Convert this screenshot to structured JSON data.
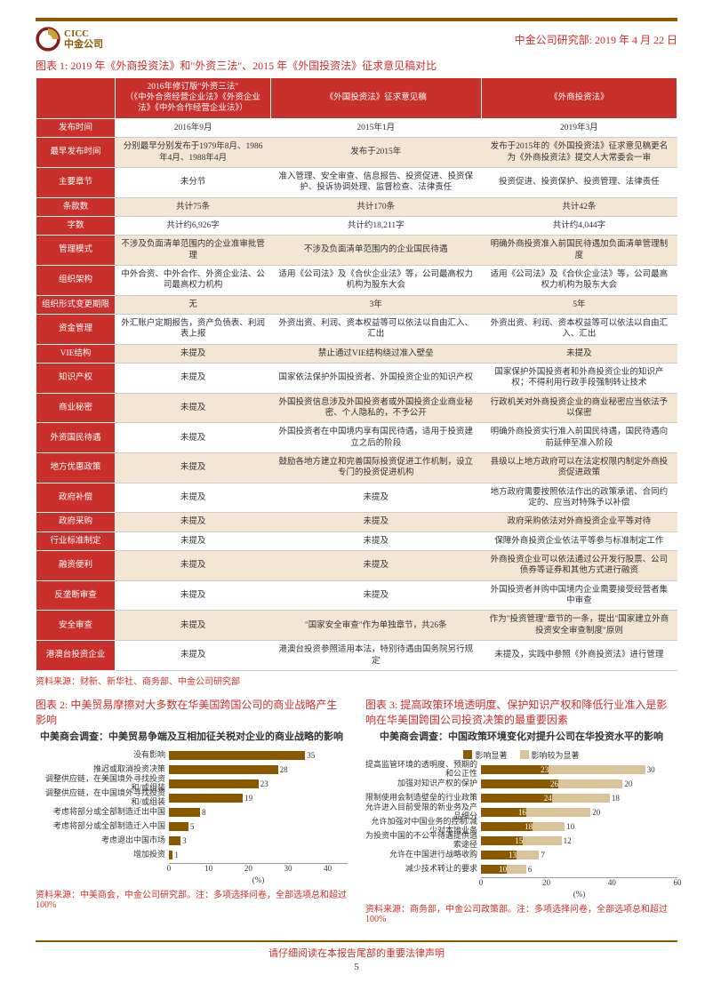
{
  "header": {
    "company_en": "CICC",
    "company_cn": "中金公司",
    "dept_date": "中金公司研究部: 2019 年 4 月 22 日"
  },
  "table1": {
    "caption": "图表 1: 2019 年《外商投资法》和\"外资三法\"、2015 年《外国投资法》征求意见稿对比",
    "headers": [
      "",
      "2016年修订版\"外资三法\"\n（《中外合资经营企业法》《外资企业法》《中外合作经营企业法》）",
      "《外国投资法》征求意见稿",
      "《外商投资法》"
    ],
    "rows": [
      {
        "h": "发布时间",
        "c": [
          "2016年9月",
          "2015年1月",
          "2019年3月"
        ]
      },
      {
        "h": "最早发布时间",
        "c": [
          "分别最早分别发布于1979年8月、1986年4月、1988年4月",
          "发布于2015年",
          "发布于2015年的《外国投资法》征求意见稿更名为《外商投资法》提交人大常委会一审"
        ]
      },
      {
        "h": "主要章节",
        "c": [
          "未分节",
          "准入管理、安全审查、信息报告、投资促进、投资保护、投诉协调处理、监督检查、法律责任",
          "投资促进、投资保护、投资管理、法律责任"
        ]
      },
      {
        "h": "条款数",
        "c": [
          "共计75条",
          "共计170条",
          "共计42条"
        ]
      },
      {
        "h": "字数",
        "c": [
          "共计约6,926字",
          "共计约18,211字",
          "共计约4,044字"
        ]
      },
      {
        "h": "管理模式",
        "c": [
          "不涉及负面清单范围内的企业准审批管理",
          "不涉及负面清单范围内的企业国民待遇",
          "明确外商投资准入前国民待遇加负面清单管理制度"
        ]
      },
      {
        "h": "组织架构",
        "c": [
          "中外合资、中外合作、外资企业法、公司最高权力机构",
          "适用《公司法》及《合伙企业法》等，公司最高权力机构为股东大会",
          "适用《公司法》及《合伙企业法》等，公司最高权力机构为股东大会"
        ]
      },
      {
        "h": "组织形式变更期限",
        "c": [
          "无",
          "3年",
          "5年"
        ]
      },
      {
        "h": "资金管理",
        "c": [
          "外汇账户定期报告，资产负债表、利润表上报",
          "外资出资、利润、资本权益等可以依法以自由汇入、汇出",
          "外资出资、利润、资本权益等可以依法以自由汇入、汇出"
        ]
      },
      {
        "h": "VIE结构",
        "c": [
          "未提及",
          "禁止通过VIE结构绕过准入壁垒",
          "未提及"
        ]
      },
      {
        "h": "知识产权",
        "c": [
          "未提及",
          "国家依法保护外国投资者、外国投资企业的知识产权",
          "国家保护外国投资者和外商投资企业的知识产权；不得利用行政手段强制转让技术"
        ]
      },
      {
        "h": "商业秘密",
        "c": [
          "未提及",
          "外国投资信息涉及外国投资者或外国投资企业商业秘密、个人隐私的，不予公开",
          "行政机关对外商投资企业的商业秘密应当依法予以保密"
        ]
      },
      {
        "h": "外资国民待遇",
        "c": [
          "未提及",
          "外国投资者在中国境内享有国民待遇，适用于投资建立之后的阶段",
          "明确外商投资实行准入前国民待遇，国民待遇向前延伸至准入阶段"
        ]
      },
      {
        "h": "地方优惠政策",
        "c": [
          "未提及",
          "鼓励各地方建立和完善国际投资促进工作机制，设立专门的投资促进机构",
          "县级以上地方政府可以在法定权限内制定外商投资促进政策"
        ]
      },
      {
        "h": "政府补偿",
        "c": [
          "未提及",
          "未提及",
          "地方政府需要按照依法作出的政策承诺、合同约定的、应当对特殊予以补偿"
        ]
      },
      {
        "h": "政府采购",
        "c": [
          "未提及",
          "未提及",
          "政府采购依法对外商投资企业平等对待"
        ]
      },
      {
        "h": "行业标准制定",
        "c": [
          "未提及",
          "未提及",
          "保障外商投资企业依法平等参与标准制定工作"
        ]
      },
      {
        "h": "融资便利",
        "c": [
          "未提及",
          "未提及",
          "外商投资企业可以依法通过公开发行股票、公司债券等证券和其他方式进行融资"
        ]
      },
      {
        "h": "反垄断审查",
        "c": [
          "未提及",
          "未提及",
          "外国投资者并购中国境内企业需要接受经营者集中审查"
        ]
      },
      {
        "h": "安全审查",
        "c": [
          "未提及",
          "\"国家安全审查\"作为单独章节，共26条",
          "作为\"投资管理\"章节的一条，提出\"国家建立外商投资安全审查制度\"原则"
        ]
      },
      {
        "h": "港澳台投资企业",
        "c": [
          "未提及",
          "港澳台投资参照适用本法，特别待遇由国务院另行规定",
          "未提及，实践中参照《外商投资法》进行管理"
        ]
      }
    ],
    "source": "资料来源：财新、新华社、商务部、中金公司研究部"
  },
  "chart2": {
    "caption": "图表 2: 中美贸易摩擦对大多数在华美国跨国公司的商业战略产生影响",
    "title": "中美商会调查：中美贸易争端及互相加征关税对企业的商业战略的影响",
    "type": "bar",
    "xmax": 45,
    "xticks": [
      0,
      10,
      20,
      30,
      40
    ],
    "xlabel": "(%)",
    "label_width": 150,
    "bar_color": "#8b5a00",
    "bars": [
      {
        "label": "没有影响",
        "value": 35
      },
      {
        "label": "推迟或取消投资决策",
        "value": 28
      },
      {
        "label": "调整供应链，在美国境外寻找投资和/或组装",
        "value": 23
      },
      {
        "label": "调整供应链，在中国境外寻找投资和/或组装",
        "value": 19
      },
      {
        "label": "考虑将部分或全部制造迁出中国",
        "value": 8
      },
      {
        "label": "考虑将部分或全部制造迁入中国",
        "value": 5
      },
      {
        "label": "考虑退出中国市场",
        "value": 3
      },
      {
        "label": "增加投资",
        "value": 1
      }
    ],
    "source": "资料来源：中美商会，中金公司研究部。注：多项选择问卷，全部选项总和超过 100%"
  },
  "chart3": {
    "caption": "图表 3: 提高政策环境透明度、保护知识产权和降低行业准入是影响在华美国跨国公司投资决策的最重要因素",
    "title": "中美商会调查：中国政策环境变化对提升公司在华投资水平的影响",
    "type": "stacked-bar",
    "xmax": 60,
    "xticks": [
      0,
      20,
      40,
      60
    ],
    "xlabel": "(%)",
    "label_width": 130,
    "legend": [
      {
        "name": "影响显著",
        "color": "#8b5a00"
      },
      {
        "name": "影响较为显著",
        "color": "#d9c49a"
      }
    ],
    "bars": [
      {
        "label": "提高监管环境的透明度、预期的和公正性",
        "v1": 23,
        "v2": 30
      },
      {
        "label": "加强对知识产权的保护",
        "v1": 26,
        "v2": 20
      },
      {
        "label": "限制使用会制造壁垒的行业政策",
        "v1": 24,
        "v2": 18
      },
      {
        "label": "允许进入目前受限的新业务及产品细分",
        "v1": 16,
        "v2": 20
      },
      {
        "label": "允许加强对中国业务的控制/减少对本地业务",
        "v1": 18,
        "v2": 10
      },
      {
        "label": "为投资中国的不公平待遇提供追索途径",
        "v1": 15,
        "v2": 12
      },
      {
        "label": "允许在中国进行战略收购",
        "v1": 13,
        "v2": 7
      },
      {
        "label": "减少技术转让的要求",
        "v1": 10,
        "v2": 6
      }
    ],
    "source": "资料来源：商务部，中金公司政策部。注：多项选择问卷，全部选项总和超过 100%"
  },
  "footer": {
    "disclaimer": "请仔细阅读在本报告尾部的重要法律声明",
    "page": "5"
  }
}
